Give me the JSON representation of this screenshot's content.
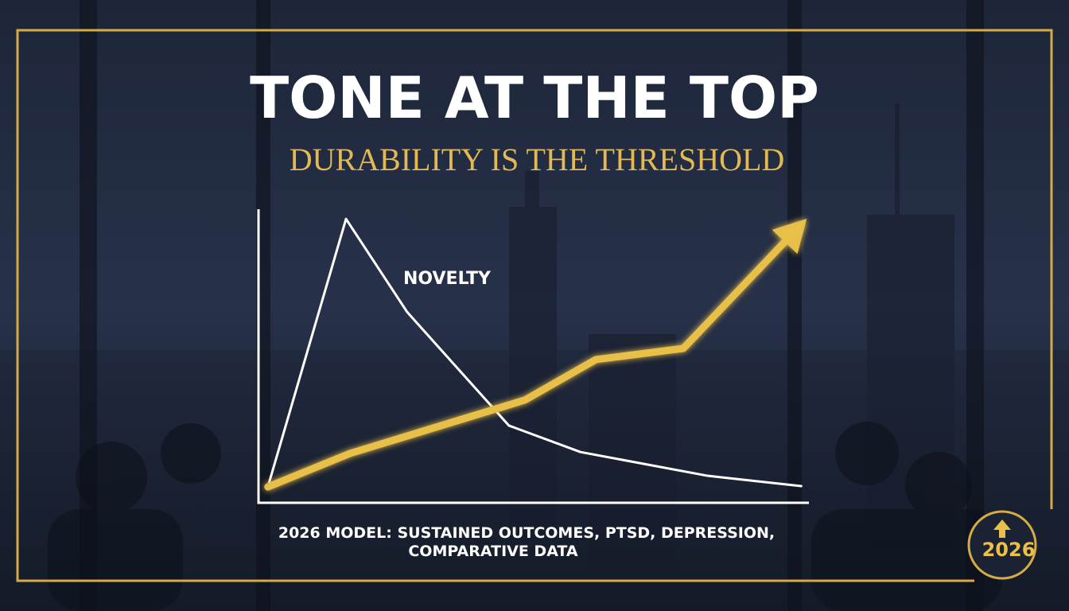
{
  "chart_data": {
    "type": "line",
    "title": "TONE AT THE TOP",
    "subtitle": "DURABILITY IS THE THRESHOLD",
    "annotation": "NOVELTY",
    "series": [
      {
        "name": "NOVELTY",
        "color": "#ffffff",
        "x": [
          1.7,
          15.9,
          27.0,
          45.5,
          58.5,
          81.6,
          98.6
        ],
        "values": [
          5.4,
          96.7,
          65.0,
          26.3,
          17.3,
          9.2,
          5.7
        ]
      },
      {
        "color": "#e8c04a",
        "x": [
          1.7,
          16.6,
          48.4,
          61.3,
          77.2,
          98.2
        ],
        "values": [
          5.4,
          16.8,
          35.0,
          48.8,
          52.6,
          94.0
        ]
      }
    ],
    "xlim": [
      0,
      100
    ],
    "ylim": [
      0,
      100
    ],
    "caption": [
      "2026 MODEL: SUSTAINED OUTCOMES, PTSD, DEPRESSION,",
      "COMPARATIVE DATA"
    ]
  },
  "badge": "2026"
}
